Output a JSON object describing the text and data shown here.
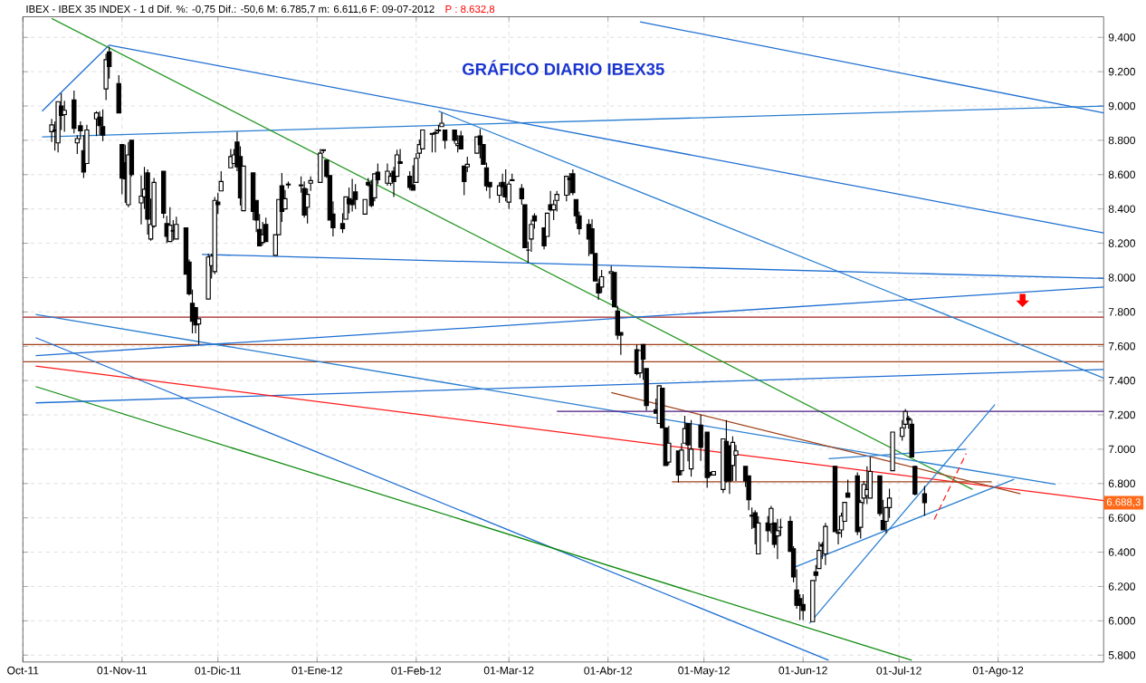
{
  "chart_data": {
    "type": "candlestick",
    "title": "GRÁFICO DIARIO IBEX35",
    "annotations": [
      "IBEX - IBEX 35 INDEX - 1 d Dif. %: -0,75 Dif.: -50,6 M: 6.785,7 m: 6.611,6 F: 09-07-2012",
      "P : 8.632,8",
      {
        "text": "6.688,3",
        "y": 6688.3
      }
    ],
    "x": [
      "2011-10-10",
      "2011-10-11",
      "2011-10-12",
      "2011-10-13",
      "2011-10-14",
      "2011-10-17",
      "2011-10-18",
      "2011-10-19",
      "2011-10-20",
      "2011-10-21",
      "2011-10-24",
      "2011-10-25",
      "2011-10-26",
      "2011-10-27",
      "2011-10-28",
      "2011-10-31",
      "2011-11-01",
      "2011-11-02",
      "2011-11-03",
      "2011-11-04",
      "2011-11-07",
      "2011-11-08",
      "2011-11-09",
      "2011-11-10",
      "2011-11-11",
      "2011-11-14",
      "2011-11-15",
      "2011-11-16",
      "2011-11-17",
      "2011-11-18",
      "2011-11-21",
      "2011-11-22",
      "2011-11-23",
      "2011-11-24",
      "2011-11-25",
      "2011-11-28",
      "2011-11-29",
      "2011-11-30",
      "2011-12-01",
      "2011-12-02",
      "2011-12-05",
      "2011-12-06",
      "2011-12-07",
      "2011-12-08",
      "2011-12-09",
      "2011-12-12",
      "2011-12-13",
      "2011-12-14",
      "2011-12-15",
      "2011-12-16",
      "2011-12-19",
      "2011-12-20",
      "2011-12-21",
      "2011-12-22",
      "2011-12-23",
      "2011-12-27",
      "2011-12-28",
      "2011-12-29",
      "2011-12-30",
      "2012-01-02",
      "2012-01-03",
      "2012-01-04",
      "2012-01-05",
      "2012-01-06",
      "2012-01-09",
      "2012-01-10",
      "2012-01-11",
      "2012-01-12",
      "2012-01-13",
      "2012-01-16",
      "2012-01-17",
      "2012-01-18",
      "2012-01-19",
      "2012-01-20",
      "2012-01-23",
      "2012-01-24",
      "2012-01-25",
      "2012-01-26",
      "2012-01-27",
      "2012-01-30",
      "2012-01-31",
      "2012-02-01",
      "2012-02-02",
      "2012-02-03",
      "2012-02-06",
      "2012-02-07",
      "2012-02-08",
      "2012-02-09",
      "2012-02-10",
      "2012-02-13",
      "2012-02-14",
      "2012-02-15",
      "2012-02-16",
      "2012-02-17",
      "2012-02-20",
      "2012-02-21",
      "2012-02-22",
      "2012-02-23",
      "2012-02-24",
      "2012-02-27",
      "2012-02-28",
      "2012-02-29",
      "2012-03-01",
      "2012-03-02",
      "2012-03-05",
      "2012-03-06",
      "2012-03-07",
      "2012-03-08",
      "2012-03-09",
      "2012-03-12",
      "2012-03-13",
      "2012-03-14",
      "2012-03-15",
      "2012-03-16",
      "2012-03-19",
      "2012-03-20",
      "2012-03-21",
      "2012-03-22",
      "2012-03-23",
      "2012-03-26",
      "2012-03-27",
      "2012-03-28",
      "2012-03-29",
      "2012-03-30",
      "2012-04-02",
      "2012-04-03",
      "2012-04-04",
      "2012-04-05",
      "2012-04-10",
      "2012-04-11",
      "2012-04-12",
      "2012-04-13",
      "2012-04-16",
      "2012-04-17",
      "2012-04-18",
      "2012-04-19",
      "2012-04-20",
      "2012-04-23",
      "2012-04-24",
      "2012-04-25",
      "2012-04-26",
      "2012-04-27",
      "2012-04-30",
      "2012-05-02",
      "2012-05-03",
      "2012-05-04",
      "2012-05-07",
      "2012-05-08",
      "2012-05-09",
      "2012-05-10",
      "2012-05-11",
      "2012-05-14",
      "2012-05-15",
      "2012-05-16",
      "2012-05-17",
      "2012-05-18",
      "2012-05-21",
      "2012-05-22",
      "2012-05-23",
      "2012-05-24",
      "2012-05-25",
      "2012-05-28",
      "2012-05-29",
      "2012-05-30",
      "2012-05-31",
      "2012-06-01",
      "2012-06-04",
      "2012-06-05",
      "2012-06-06",
      "2012-06-07",
      "2012-06-08",
      "2012-06-11",
      "2012-06-12",
      "2012-06-13",
      "2012-06-14",
      "2012-06-15",
      "2012-06-18",
      "2012-06-19",
      "2012-06-20",
      "2012-06-21",
      "2012-06-22",
      "2012-06-25",
      "2012-06-26",
      "2012-06-27",
      "2012-06-28",
      "2012-06-29",
      "2012-07-02",
      "2012-07-03",
      "2012-07-04",
      "2012-07-05",
      "2012-07-06",
      "2012-07-09"
    ],
    "ohlc": [
      [
        8850,
        8925,
        8790,
        8890
      ],
      [
        8860,
        8910,
        8740,
        8855
      ],
      [
        8785,
        9025,
        8730,
        9025
      ],
      [
        9000,
        9075,
        8860,
        8945
      ],
      [
        8950,
        9030,
        8850,
        8975
      ],
      [
        9035,
        9090,
        8840,
        8870
      ],
      [
        8785,
        8830,
        8720,
        8810
      ],
      [
        8885,
        8910,
        8805,
        8855
      ],
      [
        8740,
        8830,
        8580,
        8615
      ],
      [
        8665,
        8890,
        8665,
        8860
      ],
      [
        8925,
        8970,
        8825,
        8960
      ],
      [
        8935,
        8970,
        8830,
        8885
      ],
      [
        8880,
        8980,
        8795,
        8830
      ],
      [
        9100,
        9305,
        9035,
        9270
      ],
      [
        9315,
        9345,
        9160,
        9230
      ],
      [
        9130,
        9180,
        8960,
        8960
      ],
      [
        8775,
        8775,
        8485,
        8580
      ],
      [
        8670,
        8775,
        8435,
        8575
      ],
      [
        8425,
        8790,
        8410,
        8715
      ],
      [
        8800,
        8800,
        8590,
        8600
      ],
      [
        8435,
        8595,
        8310,
        8475
      ],
      [
        8470,
        8645,
        8400,
        8515
      ],
      [
        8610,
        8630,
        8250,
        8340
      ],
      [
        8225,
        8460,
        8215,
        8310
      ],
      [
        8300,
        8580,
        8290,
        8555
      ],
      [
        8620,
        8620,
        8345,
        8375
      ],
      [
        8315,
        8360,
        8200,
        8240
      ],
      [
        8210,
        8410,
        8210,
        8305
      ],
      [
        8270,
        8335,
        8215,
        8275
      ],
      [
        8225,
        8355,
        8225,
        8310
      ],
      [
        8290,
        8290,
        8020,
        8020
      ],
      [
        8090,
        8105,
        7895,
        7905
      ],
      [
        7850,
        7930,
        7675,
        7745
      ],
      [
        7825,
        7825,
        7675,
        7725
      ],
      [
        7730,
        7760,
        7610,
        7760
      ],
      [
        7875,
        8140,
        7875,
        8120
      ],
      [
        8070,
        8140,
        7995,
        8125
      ],
      [
        8035,
        8470,
        8020,
        8450
      ],
      [
        8440,
        8495,
        8370,
        8425
      ],
      [
        8505,
        8620,
        8505,
        8560
      ],
      [
        8640,
        8750,
        8640,
        8705
      ],
      [
        8665,
        8750,
        8665,
        8715
      ],
      [
        8790,
        8850,
        8620,
        8645
      ],
      [
        8705,
        8765,
        8420,
        8465
      ],
      [
        8390,
        8650,
        8390,
        8650
      ],
      [
        8610,
        8610,
        8335,
        8385
      ],
      [
        8450,
        8450,
        8265,
        8335
      ],
      [
        8280,
        8370,
        8185,
        8185
      ],
      [
        8205,
        8325,
        8190,
        8250
      ],
      [
        8310,
        8350,
        8210,
        8210
      ],
      [
        8130,
        8250,
        8130,
        8250
      ],
      [
        8250,
        8455,
        8250,
        8455
      ],
      [
        8535,
        8610,
        8325,
        8385
      ],
      [
        8400,
        8510,
        8400,
        8460
      ],
      [
        8540,
        8560,
        8520,
        8545
      ],
      [
        8535,
        8590,
        8495,
        8540
      ],
      [
        8520,
        8560,
        8350,
        8365
      ],
      [
        8410,
        8520,
        8315,
        8485
      ],
      [
        8550,
        8590,
        8505,
        8565
      ],
      [
        8555,
        8750,
        8555,
        8725
      ],
      [
        8740,
        8745,
        8725,
        8745
      ],
      [
        8685,
        8685,
        8580,
        8590
      ],
      [
        8595,
        8595,
        8335,
        8335
      ],
      [
        8370,
        8445,
        8240,
        8290
      ],
      [
        8315,
        8375,
        8260,
        8285
      ],
      [
        8340,
        8470,
        8340,
        8470
      ],
      [
        8460,
        8525,
        8375,
        8430
      ],
      [
        8455,
        8575,
        8385,
        8425
      ],
      [
        8500,
        8545,
        8400,
        8455
      ],
      [
        8370,
        8455,
        8370,
        8455
      ],
      [
        8555,
        8580,
        8530,
        8540
      ],
      [
        8540,
        8570,
        8410,
        8420
      ],
      [
        8465,
        8605,
        8445,
        8605
      ],
      [
        8615,
        8665,
        8545,
        8570
      ],
      [
        8550,
        8665,
        8535,
        8620
      ],
      [
        8550,
        8610,
        8535,
        8590
      ],
      [
        8620,
        8645,
        8470,
        8560
      ],
      [
        8590,
        8745,
        8590,
        8715
      ],
      [
        8675,
        8750,
        8665,
        8665
      ],
      [
        8590,
        8620,
        8510,
        8525
      ],
      [
        8540,
        8655,
        8510,
        8510
      ],
      [
        8555,
        8725,
        8555,
        8695
      ],
      [
        8725,
        8805,
        8695,
        8775
      ],
      [
        8750,
        8860,
        8750,
        8860
      ],
      [
        8835,
        8840,
        8730,
        8840
      ],
      [
        8845,
        8865,
        8730,
        8840
      ],
      [
        8860,
        8890,
        8840,
        8855
      ],
      [
        8880,
        8960,
        8880,
        8900
      ],
      [
        8860,
        8860,
        8750,
        8800
      ],
      [
        8860,
        8860,
        8780,
        8800
      ],
      [
        8770,
        8830,
        8730,
        8780
      ],
      [
        8825,
        8855,
        8750,
        8750
      ],
      [
        8650,
        8650,
        8480,
        8560
      ],
      [
        8645,
        8705,
        8615,
        8660
      ],
      [
        8725,
        8820,
        8725,
        8820
      ],
      [
        8825,
        8865,
        8695,
        8775
      ],
      [
        8775,
        8775,
        8660,
        8660
      ],
      [
        8640,
        8670,
        8505,
        8535
      ],
      [
        8555,
        8555,
        8460,
        8530
      ],
      [
        8480,
        8555,
        8435,
        8535
      ],
      [
        8555,
        8605,
        8470,
        8530
      ],
      [
        8535,
        8630,
        8445,
        8470
      ],
      [
        8440,
        8560,
        8400,
        8545
      ],
      [
        8565,
        8605,
        8565,
        8570
      ],
      [
        8520,
        8545,
        8425,
        8460
      ],
      [
        8425,
        8425,
        8175,
        8175
      ],
      [
        8160,
        8210,
        8085,
        8160
      ],
      [
        8225,
        8337,
        8150,
        8310
      ],
      [
        8360,
        8375,
        8285,
        8330
      ],
      [
        8290,
        8290,
        8165,
        8185
      ],
      [
        8240,
        8375,
        8240,
        8375
      ],
      [
        8425,
        8505,
        8385,
        8395
      ],
      [
        8395,
        8452,
        8335,
        8425
      ],
      [
        8450,
        8505,
        8385,
        8485
      ],
      [
        8480,
        8590,
        8445,
        8590
      ],
      [
        8580,
        8610,
        8480,
        8570
      ],
      [
        8605,
        8630,
        8480,
        8495
      ],
      [
        8455,
        8455,
        8315,
        8360
      ],
      [
        8360,
        8385,
        8250,
        8285
      ],
      [
        8310,
        8340,
        8125,
        8225
      ],
      [
        8285,
        8340,
        8140,
        8140
      ],
      [
        8140,
        8140,
        7980,
        7980
      ],
      [
        7965,
        7995,
        7870,
        7910
      ],
      [
        7945,
        8045,
        7910,
        8005
      ],
      [
        8025,
        8070,
        7870,
        8035
      ],
      [
        8030,
        8030,
        7830,
        7830
      ],
      [
        7805,
        7835,
        7640,
        7665
      ],
      [
        7680,
        7680,
        7550,
        7665
      ],
      [
        7580,
        7610,
        7430,
        7440
      ],
      [
        7445,
        7575,
        7415,
        7575
      ],
      [
        7610,
        7610,
        7405,
        7525
      ],
      [
        7470,
        7470,
        7225,
        7255
      ],
      [
        7230,
        7295,
        7210,
        7210
      ],
      [
        7150,
        7370,
        7150,
        7370
      ],
      [
        7355,
        7355,
        7125,
        7125
      ],
      [
        7125,
        7125,
        6905,
        6905
      ],
      [
        6925,
        7135,
        6907,
        7035
      ],
      [
        6990,
        6990,
        6805,
        6850
      ],
      [
        6875,
        7035,
        6848,
        6995
      ],
      [
        7035,
        7195,
        7035,
        7120
      ],
      [
        7150,
        7150,
        6930,
        7025
      ],
      [
        6885,
        7170,
        6840,
        7000
      ],
      [
        7140,
        7202,
        6932,
        7010
      ],
      [
        7100,
        7100,
        6775,
        6835
      ],
      [
        6865,
        6865,
        6840,
        6850
      ],
      [
        6850,
        6870,
        6850,
        6870
      ],
      [
        6765,
        7060,
        6745,
        7060
      ],
      [
        7045,
        7170,
        6805,
        6815
      ],
      [
        7020,
        7020,
        6740,
        6815
      ],
      [
        6905,
        7075,
        6815,
        7040
      ],
      [
        6965,
        7025,
        6815,
        6990
      ],
      [
        6900,
        6900,
        6780,
        6815
      ],
      [
        6845,
        6845,
        6645,
        6705
      ],
      [
        6615,
        6660,
        6535,
        6610
      ],
      [
        6630,
        6645,
        6445,
        6545
      ],
      [
        6390,
        6610,
        6390,
        6570
      ],
      [
        6570,
        6610,
        6460,
        6525
      ],
      [
        6565,
        6670,
        6510,
        6655
      ],
      [
        6570,
        6570,
        6425,
        6445
      ],
      [
        6495,
        6595,
        6360,
        6525
      ],
      [
        6545,
        6595,
        6495,
        6545
      ],
      [
        6580,
        6610,
        6405,
        6405
      ],
      [
        6420,
        6435,
        6225,
        6255
      ],
      [
        6180,
        6300,
        6070,
        6090
      ],
      [
        6130,
        6155,
        6005,
        6090
      ],
      [
        6095,
        6155,
        6005,
        6060
      ],
      [
        5995,
        6235,
        5995,
        6235
      ],
      [
        6285,
        6325,
        6230,
        6265
      ],
      [
        6305,
        6460,
        6305,
        6410
      ],
      [
        6445,
        6460,
        6360,
        6435
      ],
      [
        6390,
        6570,
        6325,
        6550
      ],
      [
        6900,
        6900,
        6520,
        6520
      ],
      [
        6510,
        6535,
        6445,
        6515
      ],
      [
        6530,
        6630,
        6485,
        6610
      ],
      [
        6580,
        6690,
        6580,
        6690
      ],
      [
        6745,
        6822,
        6720,
        6720
      ],
      [
        6845,
        6865,
        6500,
        6520
      ],
      [
        6545,
        6705,
        6480,
        6690
      ],
      [
        6715,
        6815,
        6680,
        6795
      ],
      [
        6730,
        6900,
        6680,
        6765
      ],
      [
        6715,
        6955,
        6715,
        6870
      ],
      [
        6845,
        6845,
        6610,
        6625
      ],
      [
        6585,
        6705,
        6530,
        6530
      ],
      [
        6580,
        6660,
        6510,
        6660
      ],
      [
        6660,
        6770,
        6600,
        6715
      ],
      [
        6875,
        7100,
        6875,
        7100
      ],
      [
        7075,
        7170,
        7050,
        7125
      ],
      [
        7145,
        7235,
        7120,
        7220
      ],
      [
        7180,
        7195,
        7120,
        7170
      ],
      [
        7145,
        7175,
        6955,
        6955
      ],
      [
        6900,
        6900,
        6730,
        6739
      ],
      [
        6740,
        6785.7,
        6611.6,
        6688.3
      ]
    ],
    "series": [
      {
        "type": "line",
        "color": "#1e6ed2",
        "x": [
          "2011-10-07",
          "2011-10-28"
        ],
        "values": [
          8970,
          9355
        ]
      },
      {
        "type": "line",
        "color": "#1e6ed2",
        "x": [
          "2011-10-28",
          "2012-09-03"
        ],
        "values": [
          9355,
          8260
        ]
      },
      {
        "type": "line",
        "color": "#1e6ed2",
        "x": [
          "2012-04-11",
          "2012-09-03"
        ],
        "values": [
          9490,
          8960
        ]
      },
      {
        "type": "line",
        "color": "#2a7fd0",
        "x": [
          "2011-10-07",
          "2012-09-03"
        ],
        "values": [
          8820,
          9000
        ]
      },
      {
        "type": "line",
        "color": "#2a7fd0",
        "x": [
          "2012-02-08",
          "2012-09-03"
        ],
        "values": [
          8970,
          7415
        ]
      },
      {
        "type": "line",
        "color": "#2a9a2a",
        "x": [
          "2011-10-10",
          "2012-07-24"
        ],
        "values": [
          9510,
          6765
        ]
      },
      {
        "type": "line",
        "color": "#1e6ed2",
        "x": [
          "2011-10-05",
          "2012-06-09"
        ],
        "values": [
          7650,
          5770
        ]
      },
      {
        "type": "line",
        "color": "#0e8a0e",
        "x": [
          "2011-10-05",
          "2012-07-05"
        ],
        "values": [
          7365,
          5770
        ]
      },
      {
        "type": "line",
        "color": "#1e6ed2",
        "x": [
          "2011-10-05",
          "2012-09-03"
        ],
        "values": [
          7545,
          7945
        ]
      },
      {
        "type": "line",
        "color": "#1e6ed2",
        "x": [
          "2011-10-05",
          "2012-09-03"
        ],
        "values": [
          7270,
          7465
        ]
      },
      {
        "type": "line",
        "color": "#1e6ed2",
        "x": [
          "2011-11-26",
          "2012-09-03"
        ],
        "values": [
          8135,
          7995
        ]
      },
      {
        "type": "line",
        "color": "#2a7fd0",
        "x": [
          "2011-10-05",
          "2012-08-19"
        ],
        "values": [
          7785,
          6795
        ]
      },
      {
        "type": "line",
        "color": "#ff1a1a",
        "x": [
          "2011-10-05",
          "2012-09-03"
        ],
        "values": [
          7485,
          6700
        ]
      },
      {
        "type": "line",
        "color": "#a0421a",
        "x": [
          "2012-04-02",
          "2012-08-08"
        ],
        "values": [
          7330,
          6740
        ]
      },
      {
        "type": "line",
        "color": "#4a1a80",
        "x": [
          "2012-03-16",
          "2012-09-03"
        ],
        "values": [
          7220,
          7220
        ]
      },
      {
        "type": "line",
        "color": "#a0421a",
        "x": [
          "2012-04-21",
          "2012-07-30"
        ],
        "values": [
          6810,
          6810
        ]
      },
      {
        "type": "line",
        "color": "#2a7fd0",
        "x": [
          "2012-06-09",
          "2012-07-22"
        ],
        "values": [
          6945,
          7000
        ]
      },
      {
        "type": "line",
        "color": "#2a7fd0",
        "x": [
          "2012-05-29",
          "2012-08-06"
        ],
        "values": [
          6310,
          6825
        ]
      },
      {
        "type": "line",
        "color": "#2a7fd0",
        "x": [
          "2012-06-03",
          "2012-07-31"
        ],
        "values": [
          5985,
          7260
        ]
      },
      {
        "type": "line",
        "color": "#ff2020",
        "line_style": "dashed",
        "x": [
          "2012-07-12",
          "2012-07-22"
        ],
        "values": [
          6590,
          6975
        ]
      }
    ],
    "ref_lines": [
      {
        "axis": "y",
        "value": 7770,
        "color": "#a02020"
      },
      {
        "axis": "y",
        "value": 7610,
        "color": "#a0421a"
      },
      {
        "axis": "y",
        "value": 7510,
        "color": "#a0421a"
      }
    ],
    "xlim": [
      "2011-10-01",
      "2012-09-03"
    ],
    "xticks": [
      {
        "value": "2011-10-01",
        "label": "Oct-11"
      },
      {
        "value": "2011-11-01",
        "label": "01-Nov-11"
      },
      {
        "value": "2011-12-01",
        "label": "01-Dic-11"
      },
      {
        "value": "2012-01-01",
        "label": "01-Ene-12"
      },
      {
        "value": "2012-02-01",
        "label": "01-Feb-12"
      },
      {
        "value": "2012-03-01",
        "label": "01-Mar-12"
      },
      {
        "value": "2012-04-01",
        "label": "01-Abr-12"
      },
      {
        "value": "2012-05-01",
        "label": "01-May-12"
      },
      {
        "value": "2012-06-01",
        "label": "01-Jun-12"
      },
      {
        "value": "2012-07-01",
        "label": "01-Jul-12"
      },
      {
        "value": "2012-08-01",
        "label": "01-Ago-12"
      }
    ],
    "ylim": [
      5760,
      9520
    ],
    "yticks": [
      {
        "value": 5800,
        "label": "5.800"
      },
      {
        "value": 6000,
        "label": "6.000"
      },
      {
        "value": 6200,
        "label": "6.200"
      },
      {
        "value": 6400,
        "label": "6.400"
      },
      {
        "value": 6600,
        "label": "6.600"
      },
      {
        "value": 6800,
        "label": "6.800"
      },
      {
        "value": 7000,
        "label": "7.000"
      },
      {
        "value": 7200,
        "label": "7.200"
      },
      {
        "value": 7400,
        "label": "7.400"
      },
      {
        "value": 7600,
        "label": "7.600"
      },
      {
        "value": 7800,
        "label": "7.800"
      },
      {
        "value": 8000,
        "label": "8.000"
      },
      {
        "value": 8200,
        "label": "8.200"
      },
      {
        "value": 8400,
        "label": "8.400"
      },
      {
        "value": 8600,
        "label": "8.600"
      },
      {
        "value": 8800,
        "label": "8.800"
      },
      {
        "value": 9000,
        "label": "9.000"
      },
      {
        "value": 9200,
        "label": "9.200"
      },
      {
        "value": 9400,
        "label": "9.400"
      }
    ],
    "grid": true
  }
}
